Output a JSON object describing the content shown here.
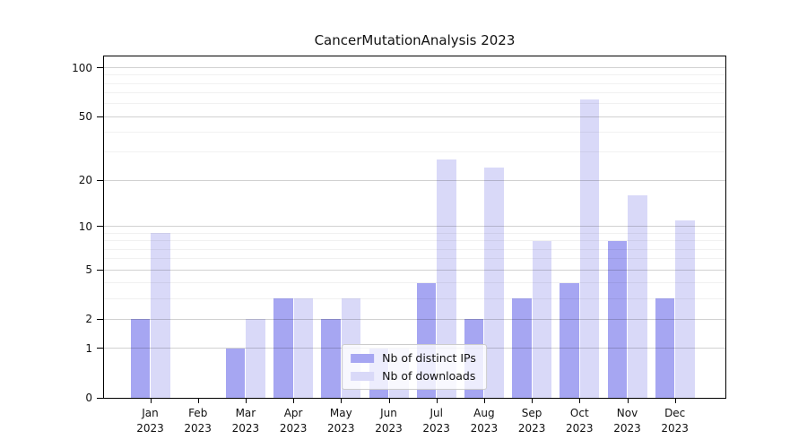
{
  "title": "CancerMutationAnalysis 2023",
  "chart_data": {
    "type": "bar",
    "categories": [
      "Jan",
      "Feb",
      "Mar",
      "Apr",
      "May",
      "Jun",
      "Jul",
      "Aug",
      "Sep",
      "Oct",
      "Nov",
      "Dec"
    ],
    "category_year": "2023",
    "series": [
      {
        "name": "Nb of distinct IPs",
        "color": "#a6a6f2",
        "values": [
          2,
          0,
          1,
          3,
          2,
          1,
          4,
          2,
          3,
          4,
          8,
          3
        ]
      },
      {
        "name": "Nb of downloads",
        "color": "#d9d9f8",
        "values": [
          9,
          0,
          2,
          3,
          3,
          1,
          27,
          24,
          8,
          64,
          16,
          11
        ]
      }
    ],
    "title": "CancerMutationAnalysis 2023",
    "xlabel": "",
    "ylabel": "",
    "y_scale": "log10(1+x)",
    "y_ticks_major": [
      0,
      1,
      2,
      5,
      10,
      20,
      50,
      100
    ],
    "y_ticks_minor": [
      3,
      4,
      6,
      7,
      8,
      9,
      30,
      40,
      60,
      70,
      80,
      90
    ],
    "ylim": [
      0,
      118
    ],
    "grid": "on",
    "grid_over_bars": true,
    "legend_position": "lower center",
    "frame": "box"
  },
  "legend": {
    "entry_ips": "Nb of distinct IPs",
    "entry_downloads": "Nb of downloads"
  },
  "colors": {
    "bar_ips": "#a6a6f2",
    "bar_downloads": "#d9d9f8",
    "grid_major": "rgba(0,0,0,0.18)",
    "grid_minor": "rgba(0,0,0,0.055)",
    "axis": "#000000",
    "background": "#ffffff"
  }
}
